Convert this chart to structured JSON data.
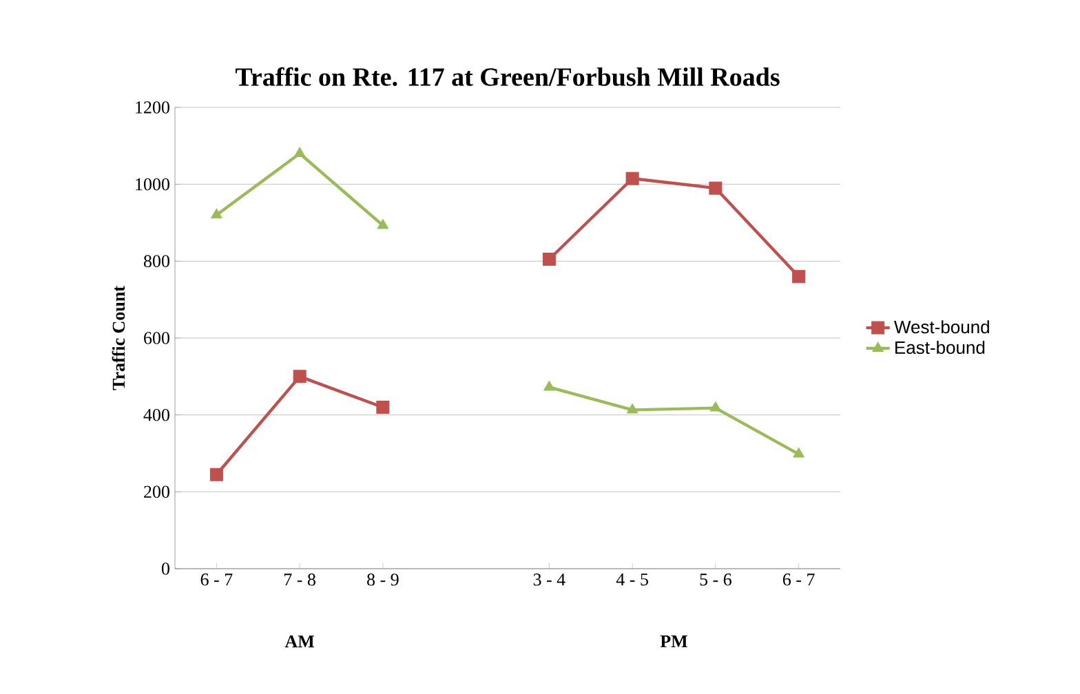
{
  "chart_data": {
    "type": "line",
    "title": "Traffic on Rte. 117 at Green/Forbush Mill Roads",
    "ylabel": "Traffic Count",
    "categories": [
      "6 - 7",
      "7 - 8",
      "8 - 9",
      null,
      "3 - 4",
      "4 - 5",
      "5 - 6",
      "6 - 7"
    ],
    "series": [
      {
        "name": "West-bound",
        "color": "#c0504d",
        "marker": "square",
        "values": [
          245,
          500,
          420,
          null,
          805,
          1015,
          990,
          760
        ]
      },
      {
        "name": "East-bound",
        "color": "#9bbb59",
        "marker": "triangle",
        "values": [
          920,
          1080,
          893,
          null,
          472,
          413,
          418,
          298
        ]
      }
    ],
    "ylim": [
      0,
      1200
    ],
    "yticks": [
      0,
      200,
      400,
      600,
      800,
      1000,
      1200
    ],
    "grid": "y",
    "legend": "right",
    "annotations": [
      "AM",
      "PM"
    ]
  }
}
